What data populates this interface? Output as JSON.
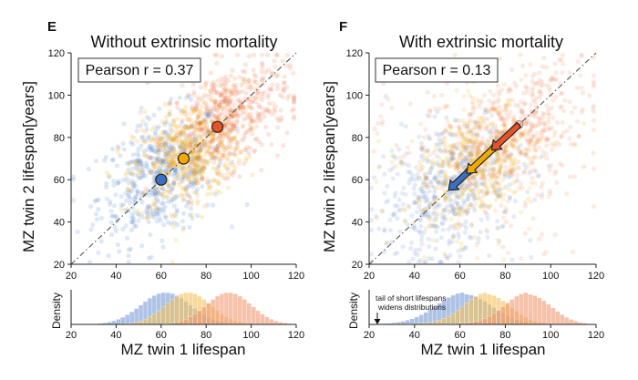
{
  "chart_data": [
    {
      "type": "scatter",
      "panel": "E",
      "title": "Without extrinsic mortality",
      "xlabel": "",
      "ylabel": "MZ twin 2 lifespan[years]",
      "xlim": [
        20,
        120
      ],
      "ylim": [
        20,
        120
      ],
      "xticks": [
        "20",
        "40",
        "60",
        "80",
        "100",
        "120"
      ],
      "yticks": [
        "20",
        "40",
        "60",
        "80",
        "100",
        "120"
      ],
      "annotation": "Pearson r = 0.37",
      "identity_line": true,
      "clusters": [
        {
          "color": "#3a6fc4",
          "center": [
            60,
            62
          ],
          "spread": [
            14,
            15
          ],
          "opacity": 0.16
        },
        {
          "color": "#f2a900",
          "center": [
            72,
            72
          ],
          "spread": [
            12,
            13
          ],
          "opacity": 0.18
        },
        {
          "color": "#ee5a24",
          "center": [
            90,
            90
          ],
          "spread": [
            13,
            13
          ],
          "opacity": 0.15
        }
      ],
      "means": [
        {
          "x": 60,
          "y": 60,
          "color": "#3a6fc4"
        },
        {
          "x": 70,
          "y": 70,
          "color": "#f2a900"
        },
        {
          "x": 85,
          "y": 85,
          "color": "#e5532a"
        }
      ]
    },
    {
      "type": "scatter",
      "panel": "F",
      "title": "With extrinsic mortality",
      "xlabel": "",
      "ylabel": "MZ twin 2 lifespan[years]",
      "xlim": [
        20,
        120
      ],
      "ylim": [
        20,
        120
      ],
      "xticks": [
        "20",
        "40",
        "60",
        "80",
        "100",
        "120"
      ],
      "yticks": [
        "20",
        "40",
        "60",
        "80",
        "100",
        "120"
      ],
      "annotation": "Pearson r = 0.13",
      "identity_line": true,
      "clusters": [
        {
          "color": "#3a6fc4",
          "center": [
            57,
            57
          ],
          "spread": [
            15,
            16
          ],
          "opacity": 0.13
        },
        {
          "color": "#f2a900",
          "center": [
            68,
            68
          ],
          "spread": [
            13,
            14
          ],
          "opacity": 0.15
        },
        {
          "color": "#ee5a24",
          "center": [
            85,
            85
          ],
          "spread": [
            15,
            15
          ],
          "opacity": 0.13
        }
      ],
      "arrows": [
        {
          "from": [
            64,
            64
          ],
          "to": [
            55,
            55
          ],
          "color": "#3a6fc4"
        },
        {
          "from": [
            75,
            75
          ],
          "to": [
            63,
            63
          ],
          "color": "#f2a900"
        },
        {
          "from": [
            86,
            86
          ],
          "to": [
            74,
            74
          ],
          "color": "#e5532a"
        }
      ]
    },
    {
      "type": "histogram",
      "panel": "E-density",
      "xlabel": "MZ twin 1 lifespan",
      "ylabel": "Density",
      "xlim": [
        20,
        120
      ],
      "xticks": [
        "20",
        "40",
        "60",
        "80",
        "100",
        "120"
      ],
      "series": [
        {
          "color": "#7a9bd6",
          "mean": 62,
          "sd": 11
        },
        {
          "color": "#f3c25a",
          "mean": 72,
          "sd": 10
        },
        {
          "color": "#f09a72",
          "mean": 90,
          "sd": 10
        }
      ]
    },
    {
      "type": "histogram",
      "panel": "F-density",
      "xlabel": "MZ twin 1 lifespan",
      "ylabel": "Density",
      "xlim": [
        20,
        120
      ],
      "xticks": [
        "20",
        "40",
        "60",
        "80",
        "100",
        "120"
      ],
      "annotation": "tail of short lifespans\nwidens distributions",
      "annotation_lines": [
        "tail of short lifespans",
        "widens distributions"
      ],
      "series": [
        {
          "color": "#7a9bd6",
          "mean": 62,
          "sd": 12,
          "tail": true
        },
        {
          "color": "#f3c25a",
          "mean": 72,
          "sd": 10,
          "tail": true
        },
        {
          "color": "#f09a72",
          "mean": 90,
          "sd": 10,
          "tail": true
        }
      ]
    }
  ]
}
